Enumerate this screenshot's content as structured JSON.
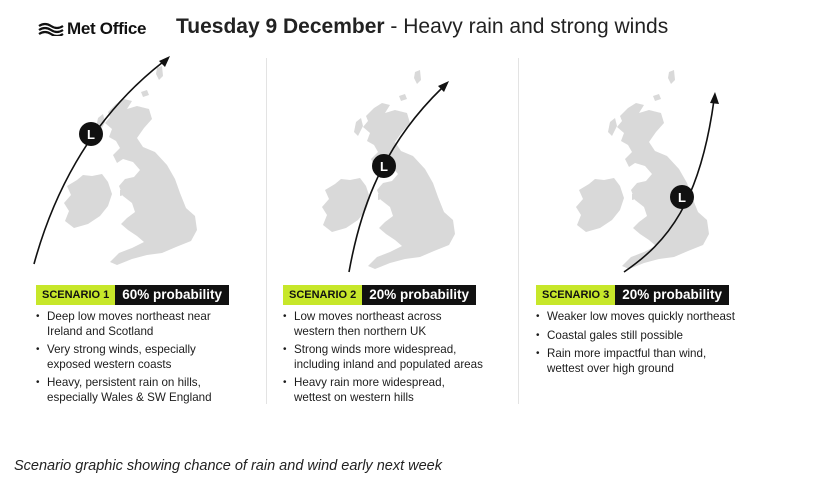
{
  "header": {
    "brand": "Met Office",
    "date": "Tuesday 9 December",
    "separator": " - ",
    "subtitle": "Heavy rain and strong winds"
  },
  "low_marker": "L",
  "scenarios": [
    {
      "name": "SCENARIO 1",
      "probability": "60% probability",
      "bullets": [
        [
          "Deep low moves northeast near",
          "Ireland and Scotland"
        ],
        [
          "Very strong winds, especially",
          "exposed western coasts"
        ],
        [
          "Heavy, persistent rain on hills,",
          "especially Wales & SW England"
        ]
      ]
    },
    {
      "name": "SCENARIO 2",
      "probability": "20% probability",
      "bullets": [
        [
          "Low moves northeast across",
          "western then northern UK"
        ],
        [
          "Strong winds more widespread,",
          "including inland and populated areas"
        ],
        [
          "Heavy rain more widespread,",
          "wettest on western hills"
        ]
      ]
    },
    {
      "name": "SCENARIO 3",
      "probability": "20% probability",
      "bullets": [
        [
          "Weaker low moves quickly northeast"
        ],
        [
          "Coastal gales still possible"
        ],
        [
          "Rain more impactful than wind,",
          "wettest over high ground"
        ]
      ]
    }
  ],
  "caption": "Scenario graphic showing chance of rain and wind early next week",
  "colors": {
    "accent": "#c7e72a",
    "land": "#d9d9d9",
    "track": "#111111",
    "probability_bg": "#111111"
  }
}
